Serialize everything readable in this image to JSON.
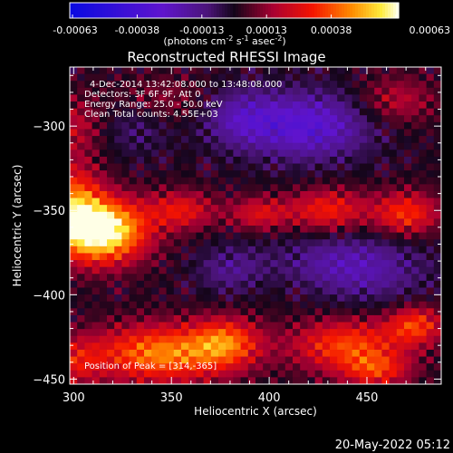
{
  "chart_data": {
    "type": "heatmap",
    "title": "Reconstructed RHESSI Image",
    "xlabel": "Heliocentric X (arcsec)",
    "ylabel": "Heliocentric Y (arcsec)",
    "xlim": [
      298,
      488
    ],
    "ylim": [
      -453,
      -265
    ],
    "x_ticks": [
      300,
      350,
      400,
      450
    ],
    "y_ticks": [
      -300,
      -350,
      -400,
      -450
    ],
    "colorbar": {
      "ticks": [
        "-0.00063",
        "-0.00038",
        "-0.00013",
        "0.00013",
        "0.00038",
        "0.00063"
      ],
      "range": [
        -0.00063,
        0.00063
      ],
      "unit_text": "(photons cm",
      "unit_sup1": "-2",
      "unit_mid1": " s",
      "unit_sup2": "-1",
      "unit_mid2": " asec",
      "unit_sup3": "-2",
      "unit_end": ")"
    },
    "annotations": [
      "4-Dec-2014 13:42:08.000 to 13:48:08.000",
      "Detectors: 3F 6F 9F, Att 0",
      "Energy Range: 25.0 - 50.0 keV",
      "Clean    Total counts: 4.55E+03"
    ],
    "peak_label": "Position of Peak = [314,-365]",
    "peak": {
      "x": 314,
      "y": -365
    },
    "blobs": [
      {
        "x": 314,
        "y": -362,
        "sx": 16,
        "sy": 13,
        "amp": 1.2
      },
      {
        "x": 300,
        "y": -345,
        "sx": 10,
        "sy": 16,
        "amp": 0.6
      },
      {
        "x": 355,
        "y": -350,
        "sx": 12,
        "sy": 8,
        "amp": 0.45
      },
      {
        "x": 395,
        "y": -352,
        "sx": 11,
        "sy": 7,
        "amp": 0.4
      },
      {
        "x": 430,
        "y": -350,
        "sx": 14,
        "sy": 9,
        "amp": 0.5
      },
      {
        "x": 470,
        "y": -352,
        "sx": 12,
        "sy": 9,
        "amp": 0.55
      },
      {
        "x": 345,
        "y": -435,
        "sx": 25,
        "sy": 12,
        "amp": 0.75
      },
      {
        "x": 378,
        "y": -428,
        "sx": 12,
        "sy": 10,
        "amp": 0.55
      },
      {
        "x": 300,
        "y": -440,
        "sx": 10,
        "sy": 10,
        "amp": 0.35
      },
      {
        "x": 440,
        "y": -430,
        "sx": 20,
        "sy": 11,
        "amp": 0.6
      },
      {
        "x": 475,
        "y": -418,
        "sx": 10,
        "sy": 8,
        "amp": 0.55
      },
      {
        "x": 455,
        "y": -445,
        "sx": 12,
        "sy": 7,
        "amp": 0.45
      },
      {
        "x": 300,
        "y": -300,
        "sx": 12,
        "sy": 12,
        "amp": 0.3
      },
      {
        "x": 345,
        "y": -285,
        "sx": 18,
        "sy": 10,
        "amp": 0.2
      },
      {
        "x": 465,
        "y": -285,
        "sx": 14,
        "sy": 10,
        "amp": 0.3
      },
      {
        "x": 420,
        "y": -395,
        "sx": 20,
        "sy": 10,
        "amp": 0.12
      },
      {
        "x": 420,
        "y": -300,
        "sx": 22,
        "sy": 14,
        "amp": -0.55
      },
      {
        "x": 385,
        "y": -295,
        "sx": 14,
        "sy": 12,
        "amp": -0.35
      },
      {
        "x": 440,
        "y": -385,
        "sx": 26,
        "sy": 14,
        "amp": -0.45
      },
      {
        "x": 380,
        "y": -385,
        "sx": 12,
        "sy": 10,
        "amp": -0.25
      },
      {
        "x": 330,
        "y": -300,
        "sx": 14,
        "sy": 12,
        "amp": -0.2
      }
    ]
  },
  "footer": {
    "timestamp": "20-May-2022 05:12"
  }
}
